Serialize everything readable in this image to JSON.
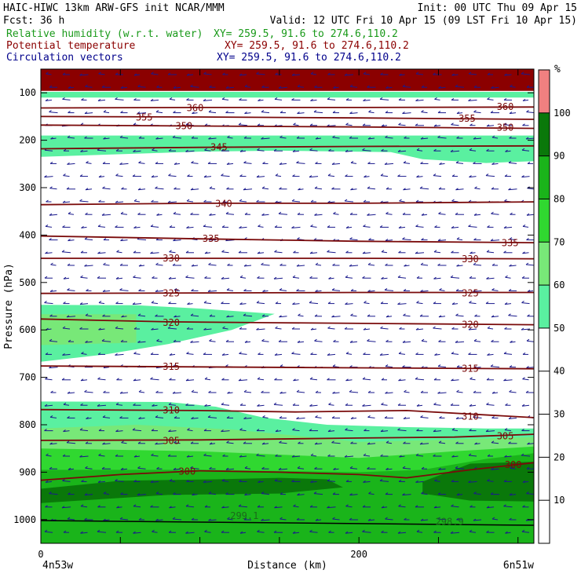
{
  "header": {
    "line1_left": "HAIC-HIWC 13km ARW-GFS init   NCAR/MMM",
    "line1_right": "Init: 00 UTC Thu 09 Apr 15",
    "line2_left": "Fcst:   36 h",
    "line2_right": "Valid: 12 UTC Fri 10 Apr 15 (09 LST Fri 10 Apr 15)",
    "fields": [
      {
        "label": "Relative humidity (w.r.t. water)",
        "xy": "XY= 259.5, 91.6 to 274.6,110.2",
        "color": "#1a9a1a"
      },
      {
        "label": "Potential temperature",
        "xy": "XY= 259.5, 91.6 to 274.6,110.2",
        "color": "#8b0000"
      },
      {
        "label": "Circulation vectors",
        "xy": "XY= 259.5, 91.6 to 274.6,110.2",
        "color": "#00008b"
      }
    ]
  },
  "chart_data": {
    "type": "heatmap",
    "xlabel": "Distance (km)",
    "ylabel": "Pressure (hPa)",
    "xlim": [
      0,
      310
    ],
    "ylim": [
      1050,
      50
    ],
    "x_ticks": [
      0,
      200
    ],
    "y_ticks": [
      100,
      200,
      300,
      400,
      500,
      600,
      700,
      800,
      900,
      1000
    ],
    "x_endpoint_labels": {
      "left": "4n53w",
      "right": "6n51w"
    },
    "colorbar": {
      "unit": "%",
      "ticks": [
        10,
        20,
        30,
        40,
        50,
        60,
        70,
        80,
        90,
        100
      ],
      "levels": [
        {
          "from": 50,
          "to": 60,
          "color": "#5af0a0"
        },
        {
          "from": 60,
          "to": 70,
          "color": "#78e878"
        },
        {
          "from": 70,
          "to": 80,
          "color": "#30d830"
        },
        {
          "from": 80,
          "to": 90,
          "color": "#1ab41a"
        },
        {
          "from": 90,
          "to": 100,
          "color": "#0a780a"
        },
        {
          "from": 100,
          "to": 110,
          "color": "#f08080"
        }
      ]
    },
    "theta_lines": [
      {
        "value": 360,
        "points": [
          [
            0,
            132
          ],
          [
            100,
            131
          ],
          [
            200,
            131
          ],
          [
            310,
            130
          ]
        ],
        "labels": [
          {
            "text": "360",
            "x": 97,
            "p": 130
          },
          {
            "text": "360",
            "x": 292,
            "p": 128
          }
        ]
      },
      {
        "value": 355,
        "points": [
          [
            0,
            150
          ],
          [
            100,
            151
          ],
          [
            200,
            153
          ],
          [
            310,
            156
          ]
        ],
        "labels": [
          {
            "text": "355",
            "x": 65,
            "p": 150
          },
          {
            "text": "355",
            "x": 268,
            "p": 153
          }
        ]
      },
      {
        "value": 350,
        "points": [
          [
            0,
            168
          ],
          [
            100,
            170
          ],
          [
            200,
            172
          ],
          [
            310,
            175
          ]
        ],
        "labels": [
          {
            "text": "350",
            "x": 90,
            "p": 168
          },
          {
            "text": "350",
            "x": 292,
            "p": 172
          }
        ]
      },
      {
        "value": 345,
        "points": [
          [
            0,
            218
          ],
          [
            100,
            215
          ],
          [
            200,
            213
          ],
          [
            310,
            212
          ]
        ],
        "labels": [
          {
            "text": "345",
            "x": 112,
            "p": 213
          }
        ]
      },
      {
        "value": 340,
        "points": [
          [
            0,
            336
          ],
          [
            100,
            333
          ],
          [
            200,
            333
          ],
          [
            310,
            330
          ]
        ],
        "labels": [
          {
            "text": "340",
            "x": 115,
            "p": 332
          }
        ]
      },
      {
        "value": 335,
        "points": [
          [
            0,
            402
          ],
          [
            100,
            408
          ],
          [
            200,
            413
          ],
          [
            310,
            416
          ]
        ],
        "labels": [
          {
            "text": "335",
            "x": 107,
            "p": 406
          },
          {
            "text": "335",
            "x": 295,
            "p": 415
          }
        ]
      },
      {
        "value": 330,
        "points": [
          [
            0,
            449
          ],
          [
            100,
            449
          ],
          [
            200,
            449
          ],
          [
            310,
            450
          ]
        ],
        "labels": [
          {
            "text": "330",
            "x": 82,
            "p": 447
          },
          {
            "text": "330",
            "x": 270,
            "p": 449
          }
        ]
      },
      {
        "value": 325,
        "points": [
          [
            0,
            523
          ],
          [
            100,
            522
          ],
          [
            200,
            521
          ],
          [
            310,
            521
          ]
        ],
        "labels": [
          {
            "text": "325",
            "x": 82,
            "p": 521
          },
          {
            "text": "325",
            "x": 270,
            "p": 521
          }
        ]
      },
      {
        "value": 320,
        "points": [
          [
            0,
            577
          ],
          [
            80,
            583
          ],
          [
            150,
            585
          ],
          [
            230,
            587
          ],
          [
            310,
            589
          ]
        ],
        "labels": [
          {
            "text": "320",
            "x": 82,
            "p": 583
          },
          {
            "text": "320",
            "x": 270,
            "p": 587
          }
        ]
      },
      {
        "value": 315,
        "points": [
          [
            0,
            676
          ],
          [
            100,
            678
          ],
          [
            200,
            680
          ],
          [
            310,
            682
          ]
        ],
        "labels": [
          {
            "text": "315",
            "x": 82,
            "p": 676
          },
          {
            "text": "315",
            "x": 270,
            "p": 680
          }
        ]
      },
      {
        "value": 310,
        "points": [
          [
            0,
            768
          ],
          [
            100,
            770
          ],
          [
            160,
            773
          ],
          [
            230,
            770
          ],
          [
            310,
            785
          ]
        ],
        "labels": [
          {
            "text": "310",
            "x": 82,
            "p": 768
          },
          {
            "text": "310",
            "x": 270,
            "p": 781
          }
        ]
      },
      {
        "value": 305,
        "points": [
          [
            0,
            833
          ],
          [
            100,
            832
          ],
          [
            200,
            828
          ],
          [
            260,
            826
          ],
          [
            310,
            820
          ]
        ],
        "labels": [
          {
            "text": "305",
            "x": 82,
            "p": 832
          },
          {
            "text": "305",
            "x": 292,
            "p": 822
          }
        ]
      },
      {
        "value": 300,
        "points": [
          [
            0,
            917
          ],
          [
            50,
            905
          ],
          [
            100,
            897
          ],
          [
            150,
            900
          ],
          [
            200,
            905
          ],
          [
            230,
            912
          ],
          [
            270,
            895
          ],
          [
            310,
            880
          ]
        ],
        "labels": [
          {
            "text": "300",
            "x": 92,
            "p": 897
          },
          {
            "text": "300",
            "x": 297,
            "p": 883
          }
        ]
      }
    ],
    "surface_labels": [
      {
        "text": "299.1",
        "x": 128,
        "p": 990
      },
      {
        "text": "298.9",
        "x": 257,
        "p": 1003
      }
    ],
    "rh_regions": [
      {
        "level": 100,
        "polygon": [
          [
            0,
            50
          ],
          [
            310,
            50
          ],
          [
            310,
            96
          ],
          [
            0,
            96
          ]
        ]
      },
      {
        "level": 50,
        "polygon": [
          [
            0,
            98
          ],
          [
            310,
            98
          ],
          [
            310,
            110
          ],
          [
            0,
            110
          ]
        ]
      },
      {
        "level": 50,
        "polygon": [
          [
            0,
            190
          ],
          [
            310,
            190
          ],
          [
            310,
            244
          ],
          [
            280,
            248
          ],
          [
            240,
            240
          ],
          [
            220,
            225
          ],
          [
            150,
            222
          ],
          [
            100,
            224
          ],
          [
            0,
            235
          ]
        ]
      },
      {
        "level": 50,
        "polygon": [
          [
            0,
            547
          ],
          [
            60,
            548
          ],
          [
            100,
            555
          ],
          [
            147,
            566
          ],
          [
            120,
            600
          ],
          [
            80,
            630
          ],
          [
            40,
            652
          ],
          [
            0,
            667
          ]
        ]
      },
      {
        "level": 60,
        "polygon": [
          [
            0,
            567
          ],
          [
            60,
            567
          ],
          [
            60,
            627
          ],
          [
            0,
            632
          ]
        ]
      },
      {
        "level": 50,
        "polygon": [
          [
            0,
            751
          ],
          [
            80,
            752
          ],
          [
            110,
            762
          ],
          [
            140,
            785
          ],
          [
            180,
            800
          ],
          [
            230,
            805
          ],
          [
            280,
            808
          ],
          [
            310,
            808
          ],
          [
            310,
            1050
          ],
          [
            0,
            1050
          ]
        ]
      },
      {
        "level": 60,
        "polygon": [
          [
            0,
            808
          ],
          [
            60,
            800
          ],
          [
            120,
            810
          ],
          [
            200,
            836
          ],
          [
            250,
            832
          ],
          [
            310,
            826
          ],
          [
            310,
            1050
          ],
          [
            0,
            1050
          ]
        ]
      },
      {
        "level": 70,
        "polygon": [
          [
            0,
            850
          ],
          [
            100,
            856
          ],
          [
            200,
            870
          ],
          [
            260,
            856
          ],
          [
            310,
            846
          ],
          [
            310,
            1050
          ],
          [
            0,
            1050
          ]
        ]
      },
      {
        "level": 80,
        "polygon": [
          [
            0,
            895
          ],
          [
            100,
            895
          ],
          [
            200,
            900
          ],
          [
            240,
            895
          ],
          [
            280,
            872
          ],
          [
            310,
            860
          ],
          [
            310,
            1050
          ],
          [
            0,
            1050
          ]
        ]
      },
      {
        "level": 90,
        "polygon": [
          [
            0,
            935
          ],
          [
            50,
            918
          ],
          [
            110,
            915
          ],
          [
            150,
            912
          ],
          [
            180,
            915
          ],
          [
            190,
            932
          ],
          [
            150,
            945
          ],
          [
            80,
            948
          ],
          [
            0,
            965
          ]
        ]
      },
      {
        "level": 90,
        "polygon": [
          [
            240,
            920
          ],
          [
            270,
            882
          ],
          [
            310,
            878
          ],
          [
            310,
            962
          ],
          [
            270,
            960
          ],
          [
            240,
            945
          ]
        ]
      }
    ]
  }
}
